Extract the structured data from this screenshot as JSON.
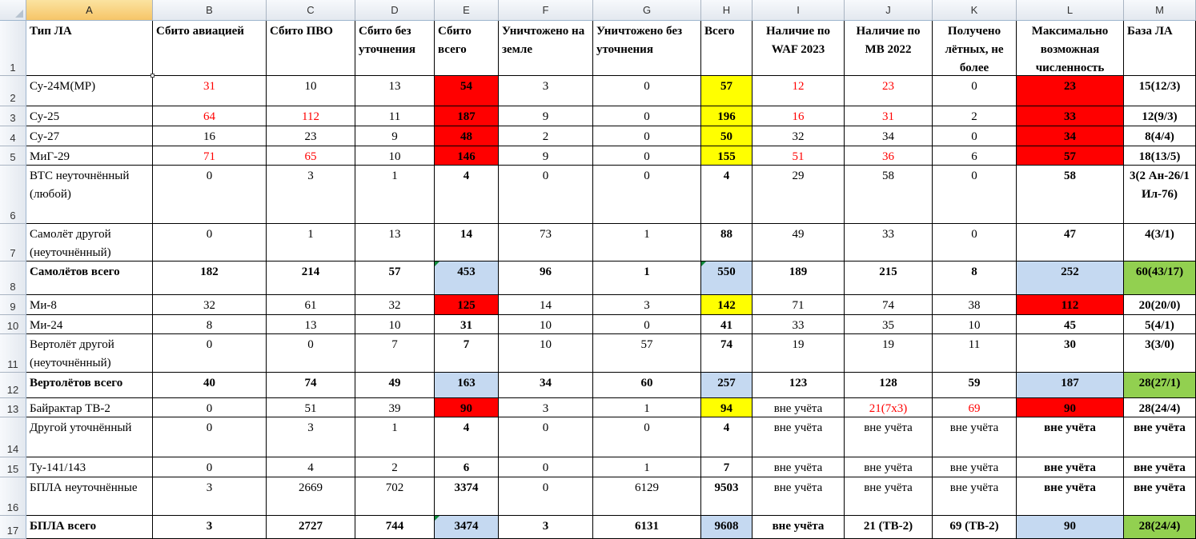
{
  "columns": [
    "A",
    "B",
    "C",
    "D",
    "E",
    "F",
    "G",
    "H",
    "I",
    "J",
    "K",
    "L",
    "M"
  ],
  "selected_column": "A",
  "rows": [
    {
      "num": "1",
      "header": true,
      "cells": [
        "Тип ЛА",
        "Сбито авиацией",
        "Сбито ПВО",
        "Сбито без уточнения",
        "Сбито всего",
        "Уничтожено на земле",
        "Уничтожено без уточнения",
        "Всего",
        "Наличие по WAF 2023",
        "Наличие по MB 2022",
        "Получено лётных, не более",
        "Максимально возможная численность",
        "База ЛА"
      ]
    },
    {
      "num": "2",
      "cells": [
        "Су-24М(МР)",
        "31",
        "10",
        "13",
        "54",
        "3",
        "0",
        "57",
        "12",
        "23",
        "0",
        "23",
        "15(12/3)"
      ]
    },
    {
      "num": "3",
      "cells": [
        "Су-25",
        "64",
        "112",
        "11",
        "187",
        "9",
        "0",
        "196",
        "16",
        "31",
        "2",
        "33",
        "12(9/3)"
      ]
    },
    {
      "num": "4",
      "cells": [
        "Су-27",
        "16",
        "23",
        "9",
        "48",
        "2",
        "0",
        "50",
        "32",
        "34",
        "0",
        "34",
        "8(4/4)"
      ]
    },
    {
      "num": "5",
      "cells": [
        "МиГ-29",
        "71",
        "65",
        "10",
        "146",
        "9",
        "0",
        "155",
        "51",
        "36",
        "6",
        "57",
        "18(13/5)"
      ]
    },
    {
      "num": "6",
      "cells": [
        "ВТС неуточнённый (любой)",
        "0",
        "3",
        "1",
        "4",
        "0",
        "0",
        "4",
        "29",
        "58",
        "0",
        "58",
        "3(2 Ан-26/1 Ил-76)"
      ]
    },
    {
      "num": "7",
      "cells": [
        "Самолёт другой (неуточнённый)",
        "0",
        "1",
        "13",
        "14",
        "73",
        "1",
        "88",
        "49",
        "33",
        "0",
        "47",
        "4(3/1)"
      ]
    },
    {
      "num": "8",
      "total": true,
      "cells": [
        "Самолётов всего",
        "182",
        "214",
        "57",
        "453",
        "96",
        "1",
        "550",
        "189",
        "215",
        "8",
        "252",
        "60(43/17)"
      ]
    },
    {
      "num": "9",
      "cells": [
        "Ми-8",
        "32",
        "61",
        "32",
        "125",
        "14",
        "3",
        "142",
        "71",
        "74",
        "38",
        "112",
        "20(20/0)"
      ]
    },
    {
      "num": "10",
      "cells": [
        "Ми-24",
        "8",
        "13",
        "10",
        "31",
        "10",
        "0",
        "41",
        "33",
        "35",
        "10",
        "45",
        "5(4/1)"
      ]
    },
    {
      "num": "11",
      "cells": [
        "Вертолёт другой (неуточнённый)",
        "0",
        "0",
        "7",
        "7",
        "10",
        "57",
        "74",
        "19",
        "19",
        "11",
        "30",
        "3(3/0)"
      ]
    },
    {
      "num": "12",
      "total": true,
      "cells": [
        "Вертолётов всего",
        "40",
        "74",
        "49",
        "163",
        "34",
        "60",
        "257",
        "123",
        "128",
        "59",
        "187",
        "28(27/1)"
      ]
    },
    {
      "num": "13",
      "cells": [
        "Байрактар ТВ-2",
        "0",
        "51",
        "39",
        "90",
        "3",
        "1",
        "94",
        "вне учёта",
        "21(7х3)",
        "69",
        "90",
        "28(24/4)"
      ]
    },
    {
      "num": "14",
      "cells": [
        "Другой уточнённый",
        "0",
        "3",
        "1",
        "4",
        "0",
        "0",
        "4",
        "вне учёта",
        "вне учёта",
        "вне учёта",
        "вне учёта",
        "вне учёта"
      ]
    },
    {
      "num": "15",
      "cells": [
        "Ту-141/143",
        "0",
        "4",
        "2",
        "6",
        "0",
        "1",
        "7",
        "вне учёта",
        "вне учёта",
        "вне учёта",
        "вне учёта",
        "вне учёта"
      ]
    },
    {
      "num": "16",
      "cells": [
        "БПЛА неуточнённые",
        "3",
        "2669",
        "702",
        "3374",
        "0",
        "6129",
        "9503",
        "вне учёта",
        "вне учёта",
        "вне учёта",
        "вне учёта",
        "вне учёта"
      ]
    },
    {
      "num": "17",
      "total": true,
      "cells": [
        "БПЛА всего",
        "3",
        "2727",
        "744",
        "3474",
        "3",
        "6131",
        "9608",
        "вне учёта",
        "21 (ТВ-2)",
        "69 (ТВ-2)",
        "90",
        "28(24/4)"
      ]
    }
  ],
  "styles": {
    "red_text_color": "#ff0000",
    "fill_red": "#ff0000",
    "fill_yellow": "#ffff00",
    "fill_blue": "#c5d9f1",
    "fill_green": "#92d050"
  }
}
